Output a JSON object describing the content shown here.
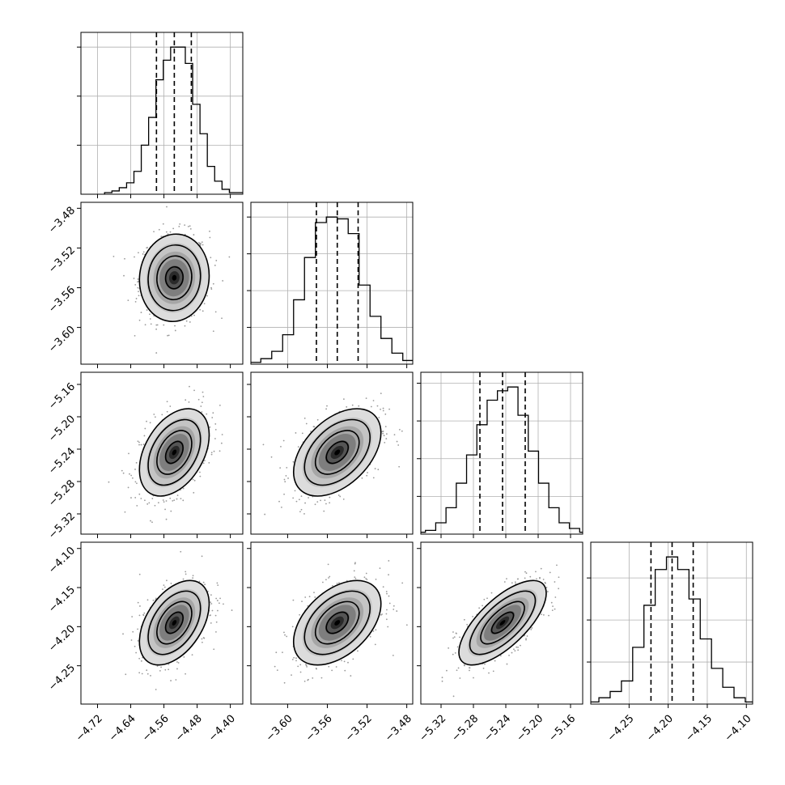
{
  "chart_data": {
    "type": "corner",
    "quantile_levels": [
      0.16,
      0.5,
      0.84
    ],
    "contour_sigma_levels": [
      0.5,
      1.0,
      1.5,
      2.0
    ],
    "colors": {
      "hist": "#000000",
      "scatter": "#9a9a9a",
      "density_dark": "#000000",
      "grid": "#b0b0b0"
    },
    "parameters": [
      {
        "mean": -4.535,
        "std": 0.042,
        "quantiles": [
          -4.578,
          -4.535,
          -4.494
        ],
        "range": [
          -4.76,
          -4.37
        ],
        "ticks": [
          -4.72,
          -4.64,
          -4.56,
          -4.48,
          -4.4
        ],
        "tick_labels": [
          "−4.72",
          "−4.64",
          "−4.56",
          "−4.48",
          "−4.40"
        ],
        "hist_values": [
          1,
          2,
          4,
          7,
          14,
          30,
          47,
          70,
          82,
          90,
          90,
          80,
          55,
          37,
          17,
          8,
          3,
          1,
          1
        ]
      },
      {
        "mean": -3.55,
        "std": 0.022,
        "quantiles": [
          -3.571,
          -3.55,
          -3.529
        ],
        "range": [
          -3.637,
          -3.474
        ],
        "ticks": [
          -3.6,
          -3.56,
          -3.52,
          -3.48
        ],
        "tick_labels": [
          "−3.60",
          "−3.56",
          "−3.52",
          "−3.48"
        ],
        "hist_values": [
          1,
          3,
          7,
          16,
          35,
          58,
          77,
          80,
          79,
          71,
          43,
          26,
          14,
          6,
          2,
          1
        ]
      },
      {
        "mean": -5.244,
        "std": 0.027,
        "quantiles": [
          -5.272,
          -5.244,
          -5.216
        ],
        "range": [
          -5.345,
          -5.145
        ],
        "ticks": [
          -5.32,
          -5.28,
          -5.24,
          -5.2,
          -5.16
        ],
        "tick_labels": [
          "−5.32",
          "−5.28",
          "−5.24",
          "−5.20",
          "−5.16"
        ],
        "hist_values": [
          1,
          2,
          6,
          14,
          27,
          42,
          58,
          71,
          76,
          78,
          63,
          44,
          27,
          14,
          6,
          3,
          1
        ]
      },
      {
        "mean": -4.195,
        "std": 0.027,
        "quantiles": [
          -4.222,
          -4.195,
          -4.168
        ],
        "range": [
          -4.299,
          -4.092
        ],
        "ticks": [
          -4.25,
          -4.2,
          -4.15,
          -4.1
        ],
        "tick_labels": [
          "−4.25",
          "−4.20",
          "−4.15",
          "−4.10"
        ],
        "hist_values": [
          1,
          3,
          6,
          11,
          27,
          47,
          64,
          70,
          64,
          50,
          31,
          17,
          8,
          3,
          1
        ]
      }
    ],
    "correlations": [
      [
        1.0,
        0.05,
        0.4,
        0.45
      ],
      [
        0.05,
        1.0,
        0.45,
        0.45
      ],
      [
        0.4,
        0.45,
        1.0,
        0.7
      ],
      [
        0.45,
        0.45,
        0.7,
        1.0
      ]
    ],
    "grid": true
  }
}
